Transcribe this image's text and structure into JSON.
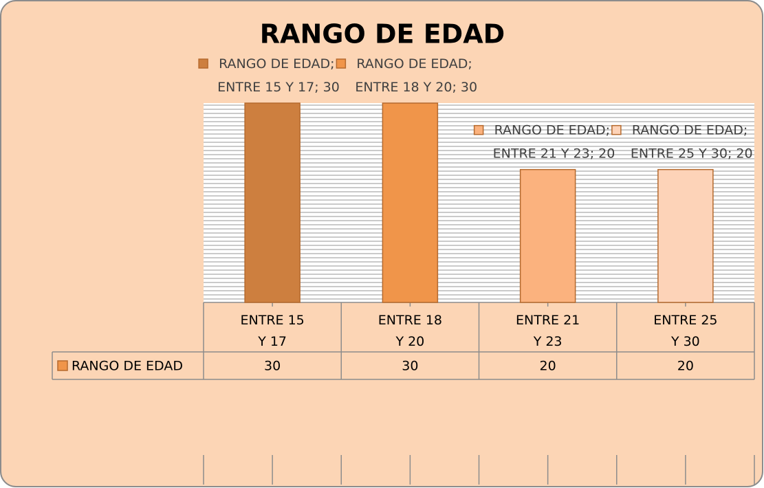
{
  "chart_data": {
    "type": "bar",
    "title": "RANGO DE EDAD",
    "categories": [
      "ENTRE 15 Y 17",
      "ENTRE 18 Y 20",
      "ENTRE 21 Y 23",
      "ENTRE 25 Y 30"
    ],
    "series": [
      {
        "name": "RANGO DE EDAD",
        "colors": [
          "#cd7f3f",
          "#f0954a",
          "#fbb27e",
          "#fdd3b8"
        ],
        "values": [
          30,
          30,
          20,
          20
        ],
        "value_labels": [
          "RANGO DE EDAD; ENTRE 15 Y 17; 30",
          "RANGO DE EDAD; ENTRE 18 Y 20; 30",
          "RANGO DE EDAD; ENTRE 21 Y 23; 20",
          "RANGO DE EDAD; ENTRE 25 Y 30; 20"
        ]
      }
    ],
    "ylim": [
      0,
      30
    ],
    "data_table": true
  }
}
